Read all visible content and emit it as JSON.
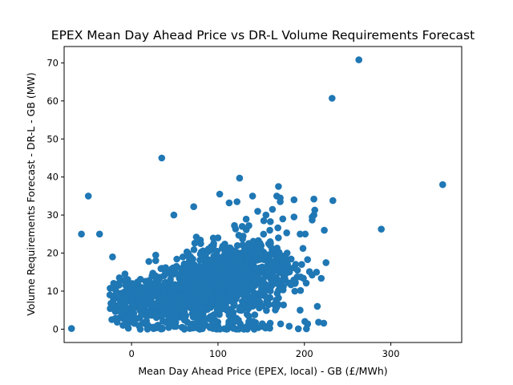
{
  "chart_data": {
    "type": "scatter",
    "title": "EPEX Mean Day Ahead Price vs DR-L Volume Requirements Forecast",
    "xlabel": "Mean Day Ahead Price (EPEX, local) - GB (£/MWh)",
    "ylabel": "Volume Requirements Forecast - DR-L - GB (MW)",
    "xlim": [
      -78,
      382
    ],
    "ylim": [
      -3.5,
      74.3
    ],
    "xticks": [
      0,
      100,
      200,
      300
    ],
    "yticks": [
      0,
      10,
      20,
      30,
      40,
      50,
      60,
      70
    ],
    "grid": false,
    "legend": false,
    "marker_color": "#1f77b4",
    "outliers": {
      "x": [
        263,
        232,
        360,
        35,
        125,
        289,
        -58,
        -50,
        -37,
        -22,
        49,
        72,
        102,
        113,
        122,
        128,
        140,
        146,
        153,
        163,
        168,
        172,
        188,
        195,
        201,
        209,
        211,
        215,
        223,
        225,
        233,
        211,
        212,
        209,
        195,
        193,
        188,
        175,
        172,
        170,
        -25,
        -20,
        -15,
        20,
        28,
        35,
        45,
        52,
        58,
        70,
        80,
        90,
        100,
        150,
        160,
        180,
        192,
        214,
        130,
        118,
        155,
        165,
        168,
        135,
        142,
        110
      ],
      "y": [
        70.8,
        60.7,
        38.0,
        45.0,
        39.7,
        26.3,
        25.0,
        35.0,
        25.0,
        19.0,
        30.0,
        32.2,
        35.5,
        33.2,
        33.5,
        27.0,
        35.0,
        31.0,
        28.5,
        31.5,
        35.0,
        33.5,
        34.0,
        25.0,
        25.0,
        28.7,
        34.2,
        6.0,
        26.0,
        17.5,
        33.8,
        30.0,
        31.3,
        29.5,
        5.0,
        0.1,
        29.5,
        29.0,
        34.5,
        37.5,
        9.0,
        11.0,
        12.0,
        17.8,
        18.0,
        16.0,
        13.0,
        16.5,
        16.0,
        18.0,
        22.5,
        21.0,
        24.0,
        22.0,
        26.0,
        20.0,
        15.5,
        15.0,
        0.0,
        0.2,
        0.3,
        6.5,
        5.8,
        0.5,
        0.0,
        0.0
      ]
    },
    "clusters": [
      {
        "center": [
          0,
          7
        ],
        "spread": [
          12,
          3.0
        ],
        "count": 120
      },
      {
        "center": [
          35,
          8
        ],
        "spread": [
          16,
          3.5
        ],
        "count": 250
      },
      {
        "center": [
          75,
          10
        ],
        "spread": [
          18,
          4.0
        ],
        "count": 300
      },
      {
        "center": [
          110,
          13
        ],
        "spread": [
          22,
          5.0
        ],
        "count": 420
      },
      {
        "center": [
          140,
          14
        ],
        "spread": [
          18,
          5.5
        ],
        "count": 220
      },
      {
        "center": [
          175,
          15
        ],
        "spread": [
          15,
          4.0
        ],
        "count": 70
      },
      {
        "center": [
          90,
          1
        ],
        "spread": [
          60,
          0.7
        ],
        "count": 70
      }
    ]
  }
}
